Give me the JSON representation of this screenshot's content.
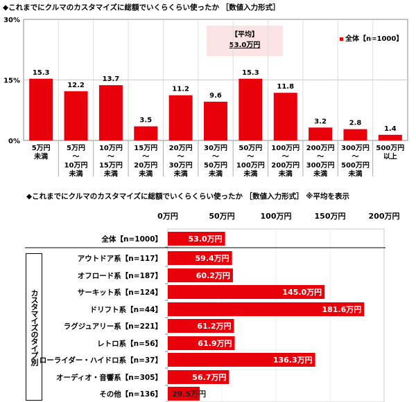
{
  "chart_data": [
    {
      "type": "bar",
      "title": "◆これまでにクルマのカスタマイズに総額でいくらくらい使ったか ［数値入力形式］",
      "categories": [
        [
          "5万円",
          "未満"
        ],
        [
          "5万円",
          "～",
          "10万円",
          "未満"
        ],
        [
          "10万円",
          "～",
          "15万円",
          "未満"
        ],
        [
          "15万円",
          "～",
          "20万円",
          "未満"
        ],
        [
          "20万円",
          "～",
          "30万円",
          "未満"
        ],
        [
          "30万円",
          "～",
          "50万円",
          "未満"
        ],
        [
          "50万円",
          "～",
          "100万円",
          "未満"
        ],
        [
          "100万円",
          "～",
          "200万円",
          "未満"
        ],
        [
          "200万円",
          "～",
          "300万円",
          "未満"
        ],
        [
          "300万円",
          "～",
          "500万円",
          "未満"
        ],
        [
          "500万円",
          "以上"
        ]
      ],
      "series": [
        {
          "name": "全体【n=1000】",
          "values": [
            15.3,
            12.2,
            13.7,
            3.5,
            11.2,
            9.6,
            15.3,
            11.8,
            3.2,
            2.8,
            1.4
          ]
        }
      ],
      "ylim": [
        0,
        30
      ],
      "yticks": [
        "0%",
        "15%",
        "30%"
      ],
      "grid": true,
      "legend": "top-right",
      "annotation": {
        "label": "【平均】",
        "value": "53.0万円"
      },
      "color": "#e8000b"
    },
    {
      "type": "bar",
      "orientation": "horizontal",
      "title": "◆これまでにクルマのカスタマイズに総額でいくらくらい使ったか ［数値入力形式］ ※平均を表示",
      "xlim": [
        0,
        200
      ],
      "xticks": [
        "0万円",
        "50万円",
        "100万円",
        "150万円",
        "200万円"
      ],
      "group_label": "カスタマイズのタイプ別",
      "categories": [
        "全体【n=1000】",
        "アウトドア系【n=117】",
        "オフロード系【n=187】",
        "サーキット系【n=124】",
        "ドリフト系【n=44】",
        "ラグジュアリー系【n=221】",
        "レトロ系【n=56】",
        "ローライダー・ハイドロ系【n=37】",
        "オーディオ・音響系【n=305】",
        "その他【n=136】"
      ],
      "values": [
        53.0,
        59.4,
        60.2,
        145.0,
        181.6,
        61.2,
        61.9,
        136.3,
        56.7,
        29.5
      ],
      "labels": [
        "53.0万円",
        "59.4万円",
        "60.2万円",
        "145.0万円",
        "181.6万円",
        "61.2万円",
        "61.9万円",
        "136.3万円",
        "56.7万円",
        "29.5万円"
      ],
      "color": "#e8000b"
    }
  ]
}
